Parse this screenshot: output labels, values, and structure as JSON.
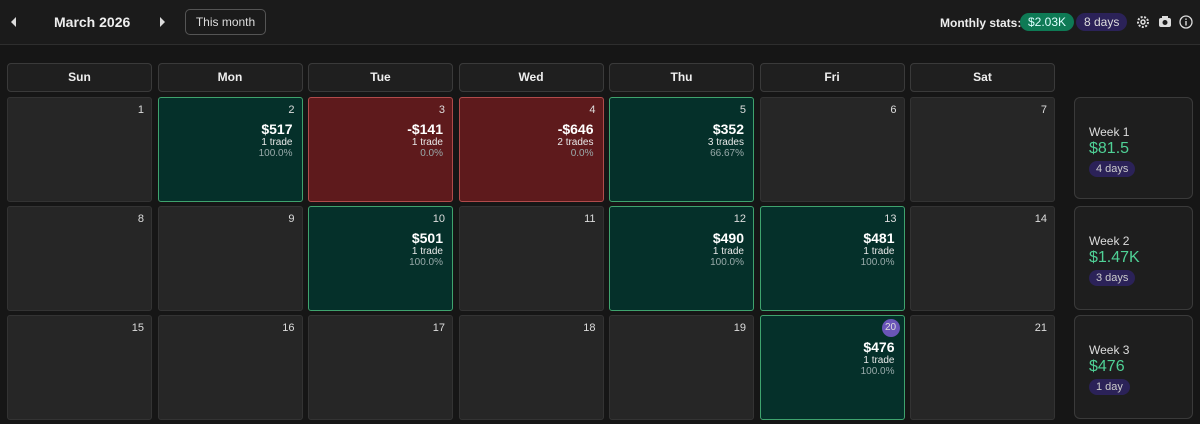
{
  "header": {
    "month": "March 2026",
    "this_month": "This month",
    "stats_label": "Monthly stats:",
    "stats_pnl": "$2.03K",
    "stats_days": "8 days"
  },
  "weekdays": [
    "Sun",
    "Mon",
    "Tue",
    "Wed",
    "Thu",
    "Fri",
    "Sat"
  ],
  "weeks": [
    {
      "label": "Week 1",
      "pnl": "$81.5",
      "days_label": "4 days",
      "days": [
        {
          "day": "1"
        },
        {
          "day": "2",
          "pnl": "$517",
          "trades": "1 trade",
          "win_rate": "100.0%"
        },
        {
          "day": "3",
          "pnl": "-$141",
          "trades": "1 trade",
          "win_rate": "0.0%"
        },
        {
          "day": "4",
          "pnl": "-$646",
          "trades": "2 trades",
          "win_rate": "0.0%"
        },
        {
          "day": "5",
          "pnl": "$352",
          "trades": "3 trades",
          "win_rate": "66.67%"
        },
        {
          "day": "6"
        },
        {
          "day": "7"
        }
      ]
    },
    {
      "label": "Week 2",
      "pnl": "$1.47K",
      "days_label": "3 days",
      "days": [
        {
          "day": "8"
        },
        {
          "day": "9"
        },
        {
          "day": "10",
          "pnl": "$501",
          "trades": "1 trade",
          "win_rate": "100.0%"
        },
        {
          "day": "11"
        },
        {
          "day": "12",
          "pnl": "$490",
          "trades": "1 trade",
          "win_rate": "100.0%"
        },
        {
          "day": "13",
          "pnl": "$481",
          "trades": "1 trade",
          "win_rate": "100.0%"
        },
        {
          "day": "14"
        }
      ]
    },
    {
      "label": "Week 3",
      "pnl": "$476",
      "days_label": "1 day",
      "days": [
        {
          "day": "15"
        },
        {
          "day": "16"
        },
        {
          "day": "17"
        },
        {
          "day": "18"
        },
        {
          "day": "19"
        },
        {
          "day": "20",
          "pnl": "$476",
          "trades": "1 trade",
          "win_rate": "100.0%",
          "today": true
        },
        {
          "day": "21"
        }
      ]
    }
  ]
}
